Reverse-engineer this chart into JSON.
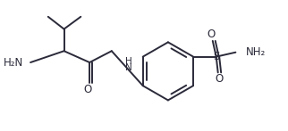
{
  "background": "#ffffff",
  "line_color": "#2a2a3a",
  "text_color": "#2a2a3a",
  "line_width": 1.4,
  "font_size": 8.5,
  "figsize": [
    3.22,
    1.47
  ],
  "dpi": 100,
  "xlim": [
    0,
    322
  ],
  "ylim": [
    0,
    147
  ]
}
